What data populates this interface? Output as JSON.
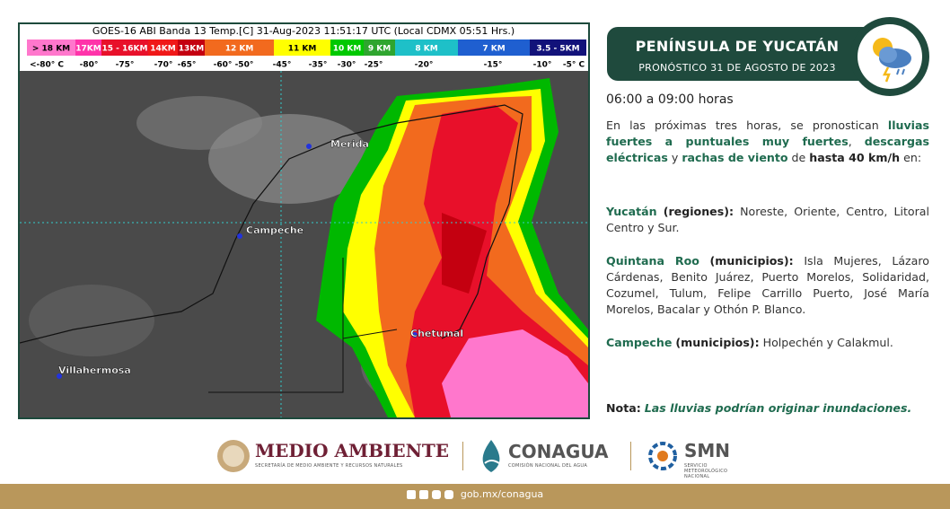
{
  "satellite": {
    "title": "GOES-16 ABI Banda 13 Temp.[C] 31-Aug-2023 11:51:17 UTC (Local CDMX  05:51 Hrs.)",
    "scale": [
      {
        "label": "> 18 KM",
        "color": "#ff77cc"
      },
      {
        "label": "17KM",
        "color": "#ff33aa"
      },
      {
        "label": "15 - 16KM",
        "color": "#e8102a"
      },
      {
        "label": "14KM",
        "color": "#f01818"
      },
      {
        "label": "13KM",
        "color": "#c40010"
      },
      {
        "label": "12 KM",
        "color": "#f26a1e"
      },
      {
        "label": "11 KM",
        "color": "#ffff00"
      },
      {
        "label": "10 KM",
        "color": "#00c800"
      },
      {
        "label": "9 KM",
        "color": "#2fa52f"
      },
      {
        "label": "8 KM",
        "color": "#1ec0c8"
      },
      {
        "label": "7 KM",
        "color": "#1f5fd0"
      },
      {
        "label": "3.5 - 5KM",
        "color": "#12127a"
      }
    ],
    "temperatures": [
      "<-80° C",
      "-80°",
      "-75°",
      "-70°",
      "-65°",
      "-60° -50°",
      "-45°",
      "-35°",
      "-30°",
      "-25°",
      "-20°",
      "-15°",
      "-10°",
      "-5° C"
    ],
    "cities": [
      "Merida",
      "Campeche",
      "Chetumal",
      "Villahermosa"
    ]
  },
  "header": {
    "title": "PENÍNSULA DE YUCATÁN",
    "subtitle": "PRONÓSTICO 31 DE AGOSTO DE 2023"
  },
  "forecast": {
    "time": "06:00 a 09:00 horas",
    "intro": [
      "En las próximas tres horas, se pronostican ",
      "lluvias fuertes a puntuales muy fuertes",
      ", ",
      "descargas eléctricas",
      " y ",
      "rachas de viento",
      " de ",
      "hasta 40 km/h",
      " en:"
    ],
    "regions": [
      {
        "state": "Yucatán",
        "qualifier": "(regiones):",
        "text": "Noreste, Oriente, Centro, Litoral Centro y Sur."
      },
      {
        "state": "Quintana Roo",
        "qualifier": "(municipios):",
        "text": "Isla Mujeres, Lázaro Cárdenas, Benito Juárez, Puerto Morelos, Solidaridad, Cozumel, Tulum, Felipe Carrillo Puerto, José María Morelos, Bacalar y Othón P. Blanco."
      },
      {
        "state": "Campeche",
        "qualifier": "(municipios):",
        "text": "Holpechén y Calakmul."
      }
    ],
    "note_label": "Nota:",
    "note": "Las lluvias podrían originar inundaciones."
  },
  "footer": {
    "semarnat": "MEDIO AMBIENTE",
    "semarnat_sub": "SECRETARÍA DE MEDIO AMBIENTE Y RECURSOS NATURALES",
    "conagua": "CONAGUA",
    "conagua_sub": "COMISIÓN NACIONAL DEL AGUA",
    "smn": "SMN",
    "smn_sub": "SERVICIO METEOROLÓGICO NACIONAL",
    "url": "gob.mx/conagua"
  }
}
